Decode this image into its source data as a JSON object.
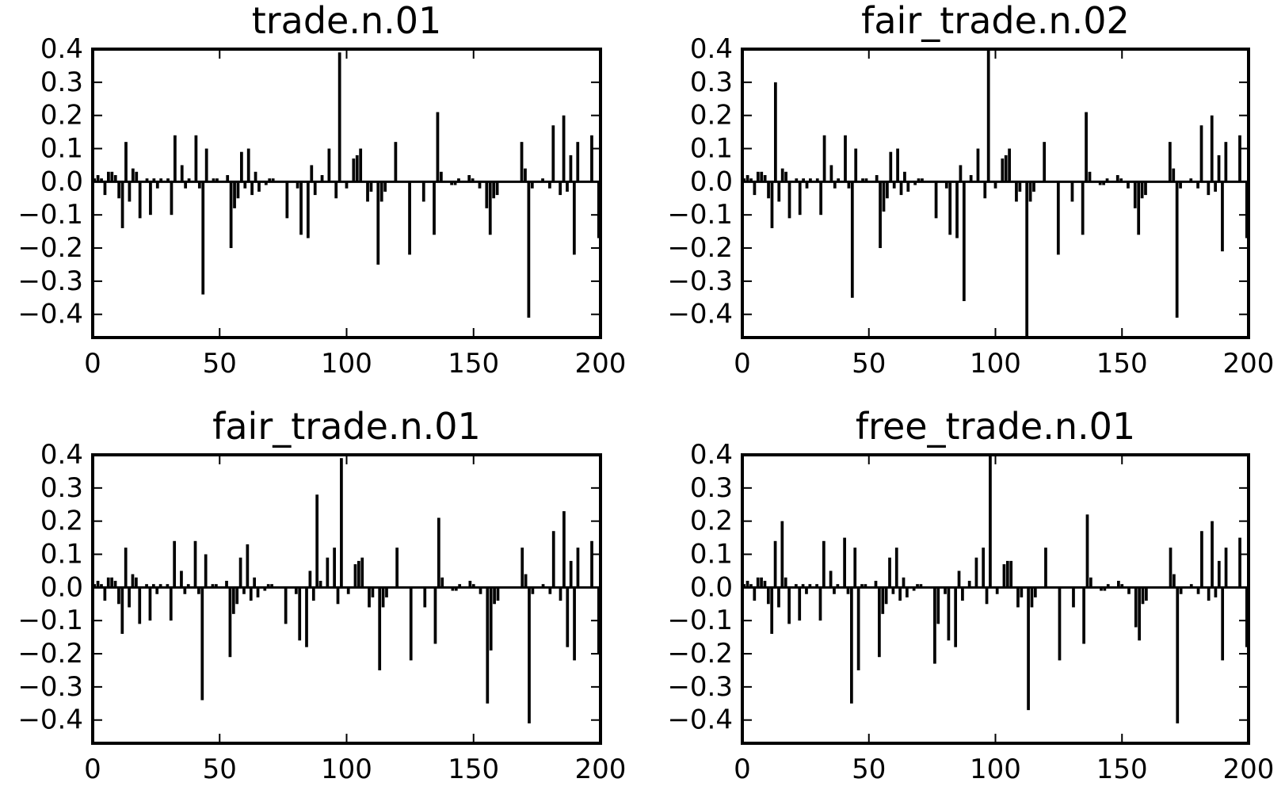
{
  "chart_data": [
    {
      "type": "bar",
      "title": "trade.n.01",
      "xlim": [
        0,
        200
      ],
      "ylim": [
        -0.47,
        0.4
      ],
      "xticks": [
        "0",
        "50",
        "100",
        "150",
        "200"
      ],
      "yticks": [
        "0.4",
        "0.3",
        "0.2",
        "0.1",
        "0.0",
        "−0.1",
        "−0.2",
        "−0.3",
        "−0.4"
      ],
      "bar_color": "#000000",
      "grid": false,
      "values": [
        0.01,
        0.02,
        0.01,
        -0.04,
        0.03,
        0.03,
        0.02,
        -0.05,
        -0.14,
        0.12,
        -0.06,
        0.04,
        0.03,
        -0.11,
        0.0,
        0.01,
        -0.1,
        0.01,
        -0.02,
        0.01,
        0.0,
        0.01,
        -0.1,
        0.14,
        0.0,
        0.05,
        -0.02,
        0.01,
        0.0,
        0.14,
        -0.02,
        -0.34,
        0.1,
        0.0,
        0.01,
        0.01,
        0.0,
        0.0,
        0.02,
        -0.2,
        -0.08,
        -0.05,
        0.09,
        -0.02,
        0.1,
        -0.04,
        0.03,
        -0.03,
        0.0,
        -0.01,
        0.01,
        0.01,
        0.0,
        0.0,
        0.0,
        -0.11,
        0.0,
        0.0,
        -0.02,
        -0.16,
        0.0,
        -0.17,
        0.05,
        -0.04,
        0.0,
        0.02,
        0.0,
        0.1,
        0.0,
        -0.05,
        0.39,
        0.0,
        -0.02,
        0.0,
        0.07,
        0.08,
        0.1,
        0.0,
        -0.06,
        -0.03,
        0.0,
        -0.25,
        -0.06,
        -0.03,
        0.0,
        0.0,
        0.12,
        0.0,
        0.0,
        0.0,
        -0.22,
        0.0,
        0.0,
        0.0,
        -0.06,
        0.0,
        0.0,
        -0.16,
        0.21,
        0.03,
        0.0,
        0.0,
        -0.01,
        -0.01,
        0.01,
        0.0,
        0.0,
        0.02,
        0.01,
        0.0,
        -0.02,
        0.0,
        -0.08,
        -0.16,
        -0.05,
        -0.04,
        0.0,
        0.0,
        0.0,
        0.0,
        0.0,
        0.0,
        0.12,
        0.04,
        -0.41,
        -0.02,
        0.0,
        0.0,
        0.01,
        0.0,
        -0.02,
        0.17,
        0.0,
        -0.04,
        0.2,
        -0.03,
        0.08,
        -0.22,
        0.12,
        0.0,
        0.0,
        0.0,
        0.14,
        0.0,
        -0.17
      ]
    },
    {
      "type": "bar",
      "title": "fair_trade.n.02",
      "xlim": [
        0,
        200
      ],
      "ylim": [
        -0.47,
        0.4
      ],
      "xticks": [
        "0",
        "50",
        "100",
        "150",
        "200"
      ],
      "yticks": [
        "0.4",
        "0.3",
        "0.2",
        "0.1",
        "0.0",
        "−0.1",
        "−0.2",
        "−0.3",
        "−0.4"
      ],
      "bar_color": "#000000",
      "grid": false,
      "values": [
        0.01,
        0.02,
        0.01,
        -0.04,
        0.03,
        0.03,
        0.02,
        -0.05,
        -0.14,
        0.3,
        -0.06,
        0.04,
        0.03,
        -0.11,
        0.0,
        0.01,
        -0.1,
        0.01,
        -0.02,
        0.01,
        0.0,
        0.01,
        -0.1,
        0.14,
        0.0,
        0.05,
        -0.02,
        0.01,
        0.0,
        0.14,
        -0.02,
        -0.35,
        0.1,
        0.0,
        0.01,
        0.01,
        0.0,
        0.0,
        0.02,
        -0.2,
        -0.09,
        -0.05,
        0.09,
        -0.02,
        0.1,
        -0.04,
        0.03,
        -0.03,
        0.0,
        -0.01,
        0.01,
        0.01,
        0.0,
        0.0,
        0.0,
        -0.11,
        0.0,
        0.0,
        -0.02,
        -0.16,
        0.0,
        -0.17,
        0.05,
        -0.36,
        0.0,
        0.02,
        0.0,
        0.1,
        0.0,
        -0.05,
        0.4,
        0.0,
        -0.02,
        0.0,
        0.07,
        0.08,
        0.1,
        0.0,
        -0.06,
        -0.03,
        0.0,
        -0.47,
        -0.06,
        -0.03,
        0.0,
        0.0,
        0.12,
        0.0,
        0.0,
        0.0,
        -0.22,
        0.0,
        0.0,
        0.0,
        -0.06,
        0.0,
        0.0,
        -0.16,
        0.21,
        0.03,
        0.0,
        0.0,
        -0.01,
        -0.01,
        0.01,
        0.0,
        0.0,
        0.02,
        0.01,
        0.0,
        -0.02,
        0.0,
        -0.08,
        -0.16,
        -0.05,
        -0.04,
        0.0,
        0.0,
        0.0,
        0.0,
        0.0,
        0.0,
        0.12,
        0.04,
        -0.41,
        -0.02,
        0.0,
        0.0,
        0.01,
        0.0,
        -0.02,
        0.17,
        0.0,
        -0.04,
        0.2,
        -0.03,
        0.08,
        -0.21,
        0.12,
        0.0,
        0.0,
        0.0,
        0.14,
        0.0,
        -0.17
      ]
    },
    {
      "type": "bar",
      "title": "fair_trade.n.01",
      "xlim": [
        0,
        200
      ],
      "ylim": [
        -0.47,
        0.4
      ],
      "xticks": [
        "0",
        "50",
        "100",
        "150",
        "200"
      ],
      "yticks": [
        "0.4",
        "0.3",
        "0.2",
        "0.1",
        "0.0",
        "−0.1",
        "−0.2",
        "−0.3",
        "−0.4"
      ],
      "bar_color": "#000000",
      "grid": false,
      "values": [
        0.01,
        0.02,
        0.01,
        -0.04,
        0.03,
        0.03,
        0.02,
        -0.05,
        -0.14,
        0.12,
        -0.06,
        0.04,
        0.03,
        -0.11,
        0.0,
        0.01,
        -0.1,
        0.01,
        -0.02,
        0.01,
        0.0,
        0.01,
        -0.1,
        0.14,
        0.0,
        0.05,
        -0.02,
        0.01,
        0.0,
        0.14,
        -0.02,
        -0.34,
        0.1,
        0.0,
        0.01,
        0.01,
        0.0,
        0.0,
        0.02,
        -0.21,
        -0.08,
        -0.05,
        0.09,
        -0.02,
        0.13,
        -0.04,
        0.03,
        -0.03,
        0.0,
        -0.01,
        0.01,
        0.01,
        0.0,
        0.0,
        0.0,
        -0.11,
        0.0,
        0.0,
        -0.02,
        -0.16,
        0.0,
        -0.18,
        0.05,
        -0.04,
        0.28,
        0.02,
        0.0,
        0.09,
        0.0,
        0.12,
        -0.05,
        0.39,
        0.0,
        -0.02,
        0.0,
        0.07,
        0.08,
        0.09,
        0.0,
        -0.06,
        -0.03,
        0.0,
        -0.25,
        -0.06,
        -0.03,
        0.0,
        0.0,
        0.12,
        0.0,
        0.0,
        0.0,
        -0.22,
        0.0,
        0.0,
        0.0,
        -0.06,
        0.0,
        0.0,
        -0.17,
        0.21,
        0.03,
        0.0,
        0.0,
        -0.01,
        -0.01,
        0.01,
        0.0,
        0.0,
        0.02,
        0.01,
        0.0,
        -0.02,
        0.0,
        -0.35,
        -0.19,
        -0.05,
        -0.04,
        0.0,
        0.0,
        0.0,
        0.0,
        0.0,
        0.0,
        0.12,
        0.04,
        -0.41,
        -0.02,
        0.0,
        0.0,
        0.01,
        0.0,
        -0.02,
        0.17,
        0.0,
        -0.04,
        0.23,
        -0.18,
        0.08,
        -0.22,
        0.12,
        0.0,
        0.0,
        0.0,
        0.14,
        0.0,
        -0.2
      ]
    },
    {
      "type": "bar",
      "title": "free_trade.n.01",
      "xlim": [
        0,
        200
      ],
      "ylim": [
        -0.47,
        0.4
      ],
      "xticks": [
        "0",
        "50",
        "100",
        "150",
        "200"
      ],
      "yticks": [
        "0.4",
        "0.3",
        "0.2",
        "0.1",
        "0.0",
        "−0.1",
        "−0.2",
        "−0.3",
        "−0.4"
      ],
      "bar_color": "#000000",
      "grid": false,
      "values": [
        0.01,
        0.02,
        0.01,
        -0.04,
        0.03,
        0.03,
        0.02,
        -0.05,
        -0.14,
        0.14,
        -0.06,
        0.2,
        0.03,
        -0.11,
        0.0,
        0.01,
        -0.1,
        0.01,
        -0.02,
        0.01,
        0.0,
        0.01,
        -0.1,
        0.14,
        0.0,
        0.05,
        -0.02,
        0.01,
        0.0,
        0.15,
        -0.02,
        -0.35,
        0.12,
        -0.25,
        0.01,
        0.01,
        0.0,
        0.0,
        0.02,
        -0.21,
        -0.08,
        -0.05,
        0.09,
        -0.02,
        0.12,
        -0.04,
        0.03,
        -0.03,
        0.0,
        -0.01,
        0.01,
        0.01,
        0.0,
        0.0,
        0.0,
        -0.23,
        -0.11,
        0.0,
        -0.02,
        -0.16,
        0.0,
        -0.18,
        0.05,
        -0.04,
        0.0,
        0.02,
        0.0,
        0.09,
        0.0,
        0.12,
        -0.05,
        0.4,
        0.0,
        -0.02,
        0.0,
        0.07,
        0.08,
        0.08,
        0.0,
        -0.06,
        -0.03,
        0.0,
        -0.37,
        -0.06,
        -0.03,
        0.0,
        0.0,
        0.12,
        0.0,
        0.0,
        0.0,
        -0.22,
        0.0,
        0.0,
        0.0,
        -0.06,
        0.0,
        0.0,
        -0.17,
        0.22,
        0.03,
        0.0,
        0.0,
        -0.01,
        -0.01,
        0.01,
        0.0,
        0.0,
        0.02,
        0.01,
        0.0,
        -0.02,
        0.0,
        -0.12,
        -0.16,
        -0.05,
        -0.04,
        0.0,
        0.0,
        0.0,
        0.0,
        0.0,
        0.0,
        0.12,
        0.04,
        -0.41,
        -0.02,
        0.0,
        0.0,
        0.01,
        0.0,
        -0.02,
        0.17,
        0.0,
        -0.04,
        0.2,
        -0.03,
        0.08,
        -0.22,
        0.12,
        0.0,
        0.0,
        0.0,
        0.15,
        0.0,
        -0.18
      ]
    }
  ]
}
